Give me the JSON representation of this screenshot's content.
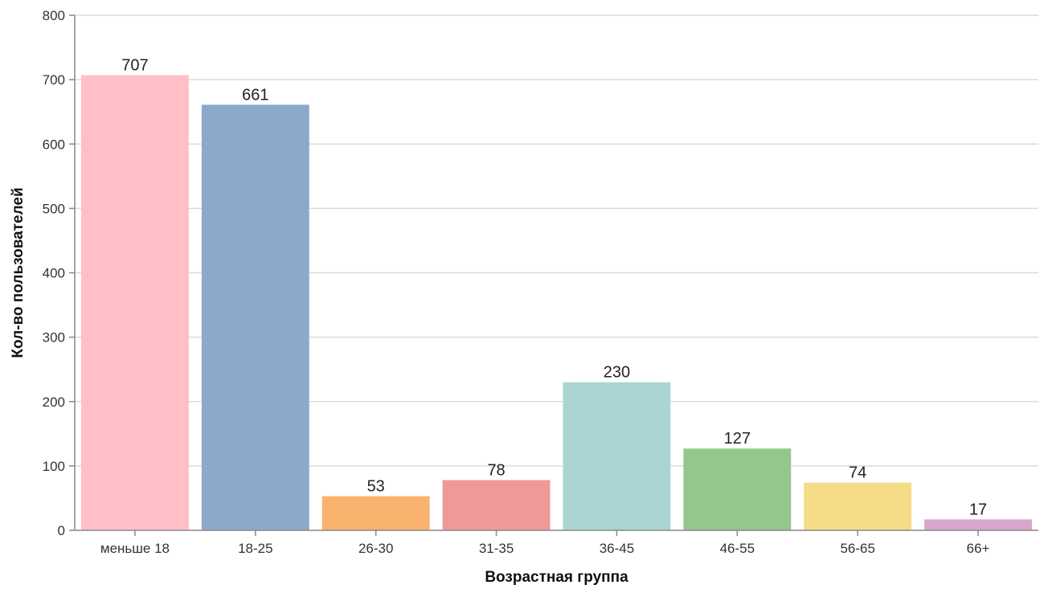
{
  "chart_data": {
    "type": "bar",
    "title": "",
    "xlabel": "Возрастная группа",
    "ylabel": "Кол-во пользователей",
    "ylim": [
      0,
      800
    ],
    "yticks": [
      "0",
      "100",
      "200",
      "300",
      "400",
      "500",
      "600",
      "700",
      "800"
    ],
    "grid": true,
    "categories": [
      "меньше 18",
      "18-25",
      "26-30",
      "31-35",
      "36-45",
      "46-55",
      "56-65",
      "66+"
    ],
    "values": [
      707,
      661,
      53,
      78,
      230,
      127,
      74,
      17
    ],
    "data_labels": [
      "707",
      "661",
      "53",
      "78",
      "230",
      "127",
      "74",
      "17"
    ],
    "colors": [
      "#ffbfc7",
      "#8aa9cb",
      "#f9b16e",
      "#ee9a98",
      "#a9d6d3",
      "#93c78c",
      "#f5dc86",
      "#d9a7cc"
    ]
  }
}
